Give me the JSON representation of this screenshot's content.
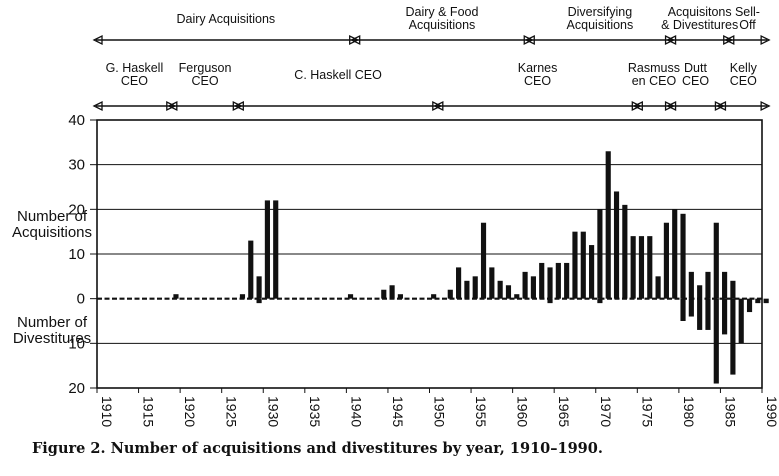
{
  "chart_data": {
    "type": "bar",
    "y_top_label": [
      "Number of",
      "Acquisitions"
    ],
    "y_bottom_label": [
      "Number of",
      "Divestitures"
    ],
    "y_ticks_top": [
      0,
      10,
      20,
      30,
      40
    ],
    "y_ticks_bottom": [
      10,
      20
    ],
    "ylim": [
      -20,
      40
    ],
    "x_ticks": [
      1910,
      1915,
      1920,
      1925,
      1930,
      1935,
      1940,
      1945,
      1950,
      1955,
      1960,
      1965,
      1970,
      1975,
      1980,
      1985,
      1990
    ],
    "xlim": [
      1910,
      1990
    ],
    "series": [
      {
        "name": "Acquisitions",
        "x": [
          1910,
          1911,
          1912,
          1913,
          1914,
          1915,
          1916,
          1917,
          1918,
          1919,
          1920,
          1921,
          1922,
          1923,
          1924,
          1925,
          1926,
          1927,
          1928,
          1929,
          1930,
          1931,
          1932,
          1933,
          1934,
          1935,
          1936,
          1937,
          1938,
          1939,
          1940,
          1941,
          1942,
          1943,
          1944,
          1945,
          1946,
          1947,
          1948,
          1949,
          1950,
          1951,
          1952,
          1953,
          1954,
          1955,
          1956,
          1957,
          1958,
          1959,
          1960,
          1961,
          1962,
          1963,
          1964,
          1965,
          1966,
          1967,
          1968,
          1969,
          1970,
          1971,
          1972,
          1973,
          1974,
          1975,
          1976,
          1977,
          1978,
          1979,
          1980,
          1981,
          1982,
          1983,
          1984,
          1985,
          1986,
          1987,
          1988,
          1989,
          1990
        ],
        "values": [
          0,
          0,
          0,
          0,
          0,
          0,
          0,
          0,
          0,
          1,
          0,
          0,
          0,
          0,
          0,
          0,
          0,
          1,
          13,
          5,
          22,
          22,
          0,
          0,
          0,
          0,
          0,
          0,
          0,
          0,
          1,
          0,
          0,
          0,
          2,
          3,
          1,
          0,
          0,
          0,
          1,
          0,
          2,
          7,
          4,
          5,
          17,
          7,
          4,
          3,
          1,
          6,
          5,
          8,
          7,
          8,
          8,
          15,
          15,
          12,
          20,
          33,
          24,
          21,
          14,
          14,
          14,
          5,
          17,
          20,
          19,
          6,
          3,
          6,
          17,
          6,
          4,
          0,
          0,
          0,
          0
        ]
      },
      {
        "name": "Divestitures",
        "x": [
          1910,
          1911,
          1912,
          1913,
          1914,
          1915,
          1916,
          1917,
          1918,
          1919,
          1920,
          1921,
          1922,
          1923,
          1924,
          1925,
          1926,
          1927,
          1928,
          1929,
          1930,
          1931,
          1932,
          1933,
          1934,
          1935,
          1936,
          1937,
          1938,
          1939,
          1940,
          1941,
          1942,
          1943,
          1944,
          1945,
          1946,
          1947,
          1948,
          1949,
          1950,
          1951,
          1952,
          1953,
          1954,
          1955,
          1956,
          1957,
          1958,
          1959,
          1960,
          1961,
          1962,
          1963,
          1964,
          1965,
          1966,
          1967,
          1968,
          1969,
          1970,
          1971,
          1972,
          1973,
          1974,
          1975,
          1976,
          1977,
          1978,
          1979,
          1980,
          1981,
          1982,
          1983,
          1984,
          1985,
          1986,
          1987,
          1988,
          1989,
          1990
        ],
        "values": [
          0,
          0,
          0,
          0,
          0,
          0,
          0,
          0,
          0,
          0,
          0,
          0,
          0,
          0,
          0,
          0,
          0,
          0,
          0,
          1,
          0,
          0,
          0,
          0,
          0,
          0,
          0,
          0,
          0,
          0,
          0,
          0,
          0,
          0,
          0,
          0,
          0,
          0,
          0,
          0,
          0,
          0,
          0,
          0,
          0,
          0,
          0,
          0,
          0,
          0,
          0,
          0,
          0,
          0,
          1,
          0,
          0,
          0,
          0,
          0,
          1,
          0,
          0,
          0,
          0,
          0,
          0,
          0,
          0,
          0,
          5,
          4,
          7,
          7,
          19,
          8,
          17,
          10,
          3,
          1,
          1
        ]
      }
    ],
    "eras": [
      {
        "label": [
          "Dairy Acquisitions"
        ],
        "from": 1910,
        "to": 1941
      },
      {
        "label": [
          "Dairy & Food",
          "Acquisitions"
        ],
        "from": 1941,
        "to": 1962
      },
      {
        "label": [
          "Diversifying",
          "Acquisitions"
        ],
        "from": 1962,
        "to": 1979
      },
      {
        "label": [
          "Acquisitons",
          "& Divestitures"
        ],
        "from": 1979,
        "to": 1986
      },
      {
        "label": [
          "Sell-",
          "Off"
        ],
        "from": 1986,
        "to": 1990.5
      }
    ],
    "ceos": [
      {
        "label": [
          "G. Haskell",
          "CEO"
        ],
        "from": 1910,
        "to": 1919
      },
      {
        "label": [
          "Ferguson",
          "CEO"
        ],
        "from": 1919,
        "to": 1927
      },
      {
        "label": [
          "C. Haskell CEO"
        ],
        "from": 1927,
        "to": 1951
      },
      {
        "label": [
          "Karnes",
          "CEO"
        ],
        "from": 1951,
        "to": 1975
      },
      {
        "label": [
          "Rasmuss",
          "en CEO"
        ],
        "from": 1975,
        "to": 1979
      },
      {
        "label": [
          "Dutt",
          "CEO"
        ],
        "from": 1979,
        "to": 1985
      },
      {
        "label": [
          "Kelly",
          "CEO"
        ],
        "from": 1985,
        "to": 1990.5
      }
    ],
    "grid": true,
    "colors": {
      "bar": "#111111",
      "grid": "#111111",
      "axis": "#111111"
    }
  },
  "caption": "Figure 2.  Number of acquisitions and divestitures by year, 1910–1990."
}
